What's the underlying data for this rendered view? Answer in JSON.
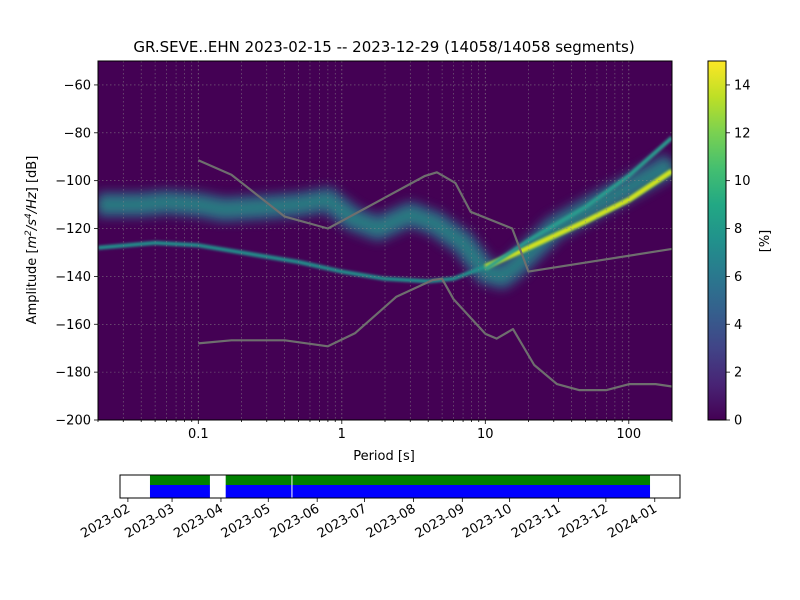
{
  "chart_data": [
    {
      "type": "heatmap",
      "title": "GR.SEVE..EHN   2023-02-15 -- 2023-12-29  (14058/14058 segments)",
      "xlabel": "Period [s]",
      "ylabel_parts": [
        "Amplitude [",
        "m",
        "2",
        "/s",
        "4",
        "/Hz",
        "] [dB]"
      ],
      "xscale": "log",
      "xlim": [
        0.02,
        200
      ],
      "ylim": [
        -200,
        -50
      ],
      "grid": true,
      "xticks": [
        {
          "value": 0.1,
          "label": "0.1"
        },
        {
          "value": 1,
          "label": "1"
        },
        {
          "value": 10,
          "label": "10"
        },
        {
          "value": 100,
          "label": "100"
        }
      ],
      "yticks": [
        {
          "value": -60,
          "label": "−60"
        },
        {
          "value": -80,
          "label": "−80"
        },
        {
          "value": -100,
          "label": "−100"
        },
        {
          "value": -120,
          "label": "−120"
        },
        {
          "value": -140,
          "label": "−140"
        },
        {
          "value": -160,
          "label": "−160"
        },
        {
          "value": -180,
          "label": "−180"
        },
        {
          "value": -200,
          "label": "−200"
        }
      ],
      "colormap": "viridis",
      "colorbar": {
        "label": "[%]",
        "range": [
          0,
          15
        ],
        "ticks": [
          {
            "value": 0,
            "label": "0"
          },
          {
            "value": 2,
            "label": "2"
          },
          {
            "value": 4,
            "label": "4"
          },
          {
            "value": 6,
            "label": "6"
          },
          {
            "value": 8,
            "label": "8"
          },
          {
            "value": 10,
            "label": "10"
          },
          {
            "value": 12,
            "label": "12"
          },
          {
            "value": 14,
            "label": "14"
          }
        ]
      },
      "density_bands": [
        {
          "name": "mode",
          "points": [
            [
              0.02,
              -110
            ],
            [
              0.04,
              -110
            ],
            [
              0.06,
              -109
            ],
            [
              0.1,
              -110
            ],
            [
              0.15,
              -112
            ],
            [
              0.3,
              -111
            ],
            [
              0.5,
              -110
            ],
            [
              0.8,
              -108
            ],
            [
              1.2,
              -116
            ],
            [
              1.8,
              -120
            ],
            [
              3,
              -114
            ],
            [
              4.5,
              -118
            ],
            [
              7,
              -126
            ],
            [
              10,
              -138
            ],
            [
              13,
              -140
            ],
            [
              16,
              -136
            ],
            [
              30,
              -120
            ],
            [
              60,
              -110
            ],
            [
              100,
              -103
            ],
            [
              200,
              -93
            ]
          ]
        },
        {
          "name": "lower-line",
          "points": [
            [
              0.02,
              -128
            ],
            [
              0.05,
              -126
            ],
            [
              0.1,
              -127
            ],
            [
              0.2,
              -130
            ],
            [
              0.5,
              -134
            ],
            [
              1,
              -138
            ],
            [
              2,
              -141
            ],
            [
              4,
              -142
            ],
            [
              6,
              -141
            ],
            [
              10,
              -136
            ],
            [
              20,
              -128
            ],
            [
              50,
              -117
            ],
            [
              100,
              -108
            ],
            [
              200,
              -96
            ]
          ]
        },
        {
          "name": "upper-line",
          "points": [
            [
              10,
              -137
            ],
            [
              20,
              -125
            ],
            [
              50,
              -111
            ],
            [
              100,
              -98
            ],
            [
              200,
              -82
            ]
          ]
        }
      ],
      "series": [
        {
          "color": "#6e6e6e",
          "points": [
            [
              0.1,
              -91.5
            ],
            [
              0.17,
              -97.5
            ],
            [
              0.4,
              -115
            ],
            [
              0.8,
              -120
            ],
            [
              3.8,
              -98
            ],
            [
              4.6,
              -96.5
            ],
            [
              6.2,
              -101
            ],
            [
              7.9,
              -113
            ],
            [
              15.4,
              -120
            ],
            [
              20,
              -138
            ],
            [
              200,
              -128.5
            ]
          ]
        },
        {
          "color": "#6e6e6e",
          "points": [
            [
              0.1,
              -168
            ],
            [
              0.17,
              -166.7
            ],
            [
              0.4,
              -166.7
            ],
            [
              0.8,
              -169.2
            ],
            [
              1.24,
              -163.7
            ],
            [
              2.4,
              -148.5
            ],
            [
              4.3,
              -141.5
            ],
            [
              5.0,
              -141
            ],
            [
              6.0,
              -149.5
            ],
            [
              10,
              -164
            ],
            [
              12,
              -166
            ],
            [
              15.6,
              -162
            ],
            [
              21.9,
              -177
            ],
            [
              31.6,
              -185
            ],
            [
              45,
              -187.5
            ],
            [
              70,
              -187.5
            ],
            [
              101,
              -185
            ],
            [
              154,
              -185
            ],
            [
              200,
              -186
            ]
          ]
        }
      ]
    },
    {
      "type": "timeline",
      "xticks": [
        "2023-02",
        "2023-03",
        "2023-04",
        "2023-05",
        "2023-06",
        "2023-07",
        "2023-08",
        "2023-09",
        "2023-10",
        "2023-11",
        "2023-12",
        "2024-01"
      ],
      "xlim": [
        "2023-01-27",
        "2024-01-17"
      ],
      "coverage": [
        {
          "start": "2023-02-15",
          "end": "2023-03-25"
        },
        {
          "start": "2023-04-04",
          "end": "2023-12-29"
        }
      ],
      "gaps": [
        "2023-05-16"
      ],
      "colors": {
        "coverage": "#0000ff",
        "usable": "#008000",
        "gap": "#ffffff"
      }
    }
  ]
}
